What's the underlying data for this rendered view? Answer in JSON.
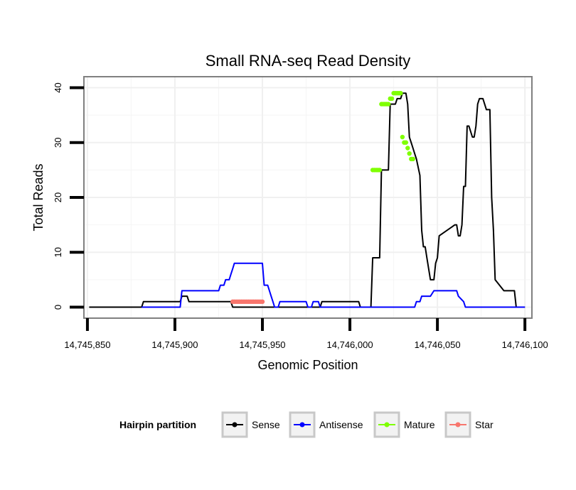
{
  "chart_data": {
    "type": "line",
    "title": "Small RNA-seq Read Density",
    "xlabel": "Genomic Position",
    "ylabel": "Total Reads",
    "xlim": [
      14745848,
      14746104
    ],
    "ylim": [
      -2,
      42
    ],
    "x_ticks": [
      14745850,
      14745900,
      14745950,
      14746000,
      14746050,
      14746100
    ],
    "x_tick_labels": [
      "14,745,850",
      "14,745,900",
      "14,745,950",
      "14,746,000",
      "14,746,050",
      "14,746,100"
    ],
    "y_ticks": [
      0,
      10,
      20,
      30,
      40
    ],
    "y_tick_labels": [
      "0",
      "10",
      "20",
      "30",
      "40"
    ],
    "grid": true,
    "legend": {
      "title": "Hairpin partition",
      "position": "bottom",
      "entries": [
        "Sense",
        "Antisense",
        "Mature",
        "Star"
      ]
    },
    "series": [
      {
        "name": "Sense",
        "color": "#000000",
        "style": "line",
        "x": [
          14745851,
          14745881,
          14745882,
          14745903,
          14745904,
          14745907,
          14745908,
          14745932,
          14745933,
          14745950,
          14745951,
          14745983,
          14745984,
          14746005,
          14746006,
          14746012,
          14746013,
          14746017,
          14746018,
          14746022,
          14746023,
          14746026,
          14746027,
          14746029,
          14746030,
          14746032,
          14746033,
          14746034,
          14746035,
          14746036,
          14746037,
          14746038,
          14746040,
          14746041,
          14746042,
          14746043,
          14746044,
          14746045,
          14746046,
          14746048,
          14746049,
          14746050,
          14746051,
          14746060,
          14746061,
          14746062,
          14746063,
          14746064,
          14746065,
          14746066,
          14746067,
          14746068,
          14746070,
          14746071,
          14746072,
          14746073,
          14746074,
          14746076,
          14746078,
          14746080,
          14746081,
          14746082,
          14746083,
          14746088,
          14746094,
          14746095,
          14746096,
          14746098,
          14746099,
          14746100
        ],
        "y": [
          0,
          0,
          1,
          1,
          2,
          2,
          1,
          1,
          0,
          0,
          0,
          0,
          1,
          1,
          0,
          0,
          9,
          9,
          25,
          25,
          37,
          37,
          38,
          38,
          39,
          39,
          37,
          31,
          30,
          29,
          28,
          27,
          24,
          14,
          11,
          11,
          9,
          7,
          5,
          5,
          8,
          9,
          13,
          15,
          15,
          13,
          13,
          15,
          22,
          22,
          33,
          33,
          31,
          31,
          33,
          37,
          38,
          38,
          36,
          36,
          20,
          14,
          5,
          3,
          3,
          0,
          0,
          0,
          0,
          0
        ]
      },
      {
        "name": "Antisense",
        "color": "#0000ff",
        "style": "line",
        "x": [
          14745881,
          14745903,
          14745904,
          14745925,
          14745926,
          14745928,
          14745929,
          14745931,
          14745932,
          14745933,
          14745934,
          14745936,
          14745937,
          14745938,
          14745939,
          14745950,
          14745951,
          14745953,
          14745954,
          14745955,
          14745956,
          14745957,
          14745958,
          14745959,
          14745960,
          14745975,
          14745976,
          14745978,
          14745979,
          14745982,
          14745983,
          14746004,
          14746005,
          14746037,
          14746038,
          14746040,
          14746041,
          14746045,
          14746046,
          14746048,
          14746049,
          14746061,
          14746062,
          14746065,
          14746066,
          14746067,
          14746068,
          14746100
        ],
        "y": [
          0,
          0,
          3,
          3,
          4,
          4,
          5,
          5,
          6,
          7,
          8,
          8,
          8,
          8,
          8,
          8,
          4,
          4,
          3,
          2,
          1,
          0,
          0,
          0,
          1,
          1,
          0,
          0,
          1,
          1,
          0,
          0,
          0,
          0,
          1,
          1,
          2,
          2,
          2,
          3,
          3,
          3,
          2,
          1,
          0,
          0,
          0,
          0
        ]
      },
      {
        "name": "Mature",
        "color": "#7fff00",
        "style": "points",
        "x": [
          14746013,
          14746014,
          14746015,
          14746016,
          14746017,
          14746018,
          14746019,
          14746020,
          14746021,
          14746022,
          14746023,
          14746024,
          14746025,
          14746026,
          14746027,
          14746028,
          14746029,
          14746030,
          14746031,
          14746032,
          14746033,
          14746034,
          14746035,
          14746036
        ],
        "y": [
          25,
          25,
          25,
          25,
          25,
          37,
          37,
          37,
          37,
          37,
          38,
          38,
          39,
          39,
          39,
          39,
          39,
          31,
          30,
          30,
          29,
          28,
          27,
          27
        ]
      },
      {
        "name": "Star",
        "color": "#f8766d",
        "style": "points",
        "x": [
          14745933,
          14745934,
          14745935,
          14745936,
          14745937,
          14745938,
          14745939,
          14745940,
          14745941,
          14745942,
          14745943,
          14745944,
          14745945,
          14745946,
          14745947,
          14745948,
          14745949,
          14745950
        ],
        "y": [
          1,
          1,
          1,
          1,
          1,
          1,
          1,
          1,
          1,
          1,
          1,
          1,
          1,
          1,
          1,
          1,
          1,
          1
        ]
      }
    ]
  }
}
